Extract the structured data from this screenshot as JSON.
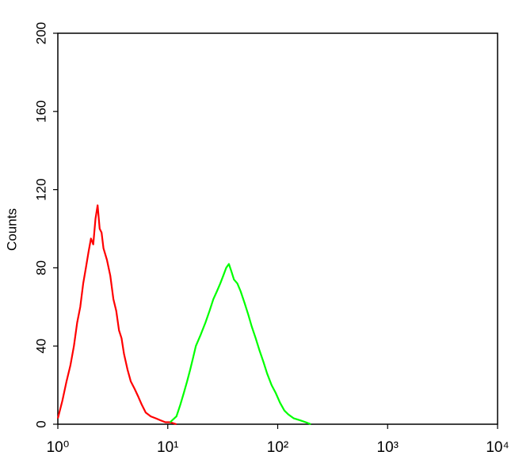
{
  "chart_data": {
    "type": "line",
    "y_label": "Counts",
    "xscale": "log",
    "xlim": [
      1,
      10000
    ],
    "xticks": [
      {
        "value": 1,
        "label": "10⁰"
      },
      {
        "value": 10,
        "label": "10¹"
      },
      {
        "value": 100,
        "label": "10²"
      },
      {
        "value": 1000,
        "label": "10³"
      },
      {
        "value": 10000,
        "label": "10⁴"
      }
    ],
    "ylim": [
      0,
      200
    ],
    "yticks": [
      0,
      40,
      80,
      120,
      160,
      200
    ],
    "series": [
      {
        "color": "#ff0000",
        "x": [
          1.0,
          1.1,
          1.2,
          1.3,
          1.4,
          1.5,
          1.6,
          1.7,
          1.8,
          1.9,
          2.0,
          2.1,
          2.2,
          2.3,
          2.4,
          2.5,
          2.6,
          2.8,
          3.0,
          3.2,
          3.4,
          3.6,
          3.8,
          4.0,
          4.3,
          4.6,
          5.0,
          5.4,
          5.8,
          6.3,
          7.0,
          7.8,
          8.6,
          9.5,
          10.5,
          12
        ],
        "values": [
          3,
          12,
          22,
          30,
          40,
          52,
          60,
          72,
          80,
          88,
          95,
          92,
          105,
          112,
          100,
          98,
          90,
          84,
          76,
          64,
          58,
          48,
          44,
          36,
          28,
          22,
          18,
          14,
          10,
          6,
          4,
          3,
          2,
          1,
          1,
          0
        ]
      },
      {
        "color": "#00ff00",
        "x": [
          10.5,
          12,
          13,
          14,
          15,
          16,
          17,
          18,
          20,
          22,
          24,
          26,
          28,
          30,
          32,
          34,
          36,
          38,
          40,
          43,
          46,
          50,
          54,
          58,
          63,
          68,
          74,
          80,
          88,
          96,
          105,
          115,
          125,
          140,
          160,
          180,
          200
        ],
        "values": [
          1,
          4,
          10,
          16,
          22,
          28,
          34,
          40,
          46,
          52,
          58,
          64,
          68,
          72,
          76,
          80,
          82,
          78,
          74,
          72,
          68,
          62,
          56,
          50,
          44,
          38,
          32,
          26,
          20,
          16,
          11,
          7,
          5,
          3,
          2,
          1,
          0
        ]
      }
    ]
  }
}
